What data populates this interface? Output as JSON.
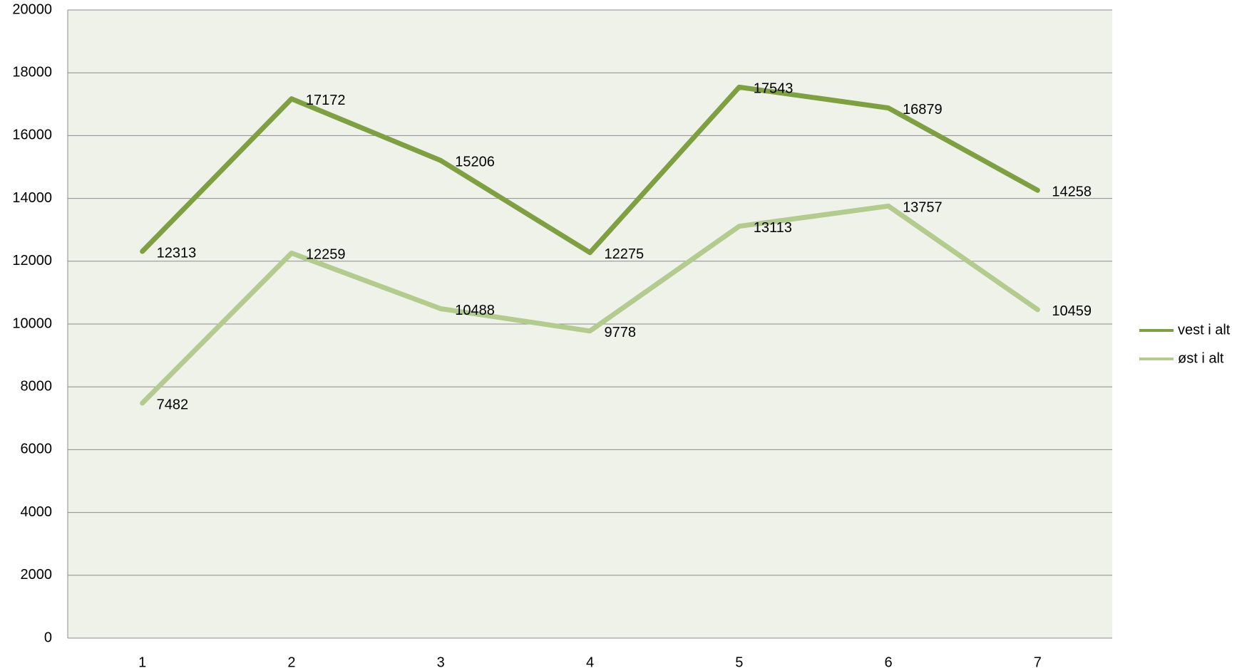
{
  "chart_data": {
    "type": "line",
    "categories": [
      "1",
      "2",
      "3",
      "4",
      "5",
      "6",
      "7"
    ],
    "series": [
      {
        "name": "vest i alt",
        "color": "#7e9f42",
        "values": [
          12313,
          17172,
          15206,
          12275,
          17543,
          16879,
          14258
        ]
      },
      {
        "name": "øst i alt",
        "color": "#b3cb8f",
        "values": [
          7482,
          12259,
          10488,
          9778,
          13113,
          13757,
          10459
        ]
      }
    ],
    "ylim": [
      0,
      20000
    ],
    "yticks": [
      0,
      2000,
      4000,
      6000,
      8000,
      10000,
      12000,
      14000,
      16000,
      18000,
      20000
    ],
    "grid": true,
    "legend": "right"
  }
}
